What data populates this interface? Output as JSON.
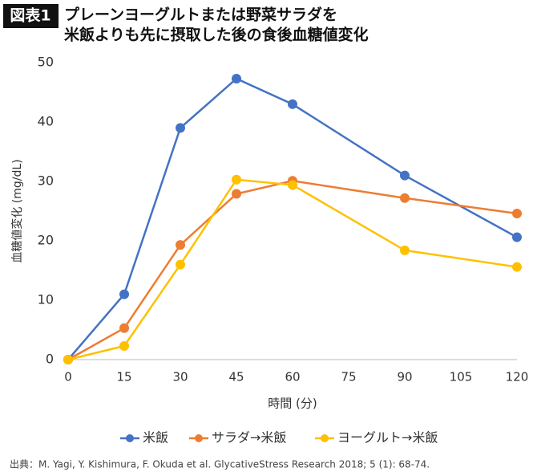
{
  "chart_data": {
    "type": "line",
    "badge": "図表1",
    "title_lines": [
      "プレーンヨーグルトまたは野菜サラダを",
      "米飯よりも先に摂取した後の食後血糖値変化"
    ],
    "x_label": "時間 (分)",
    "y_label": "血糖値変化 (mg/dL)",
    "x": [
      0,
      15,
      30,
      45,
      60,
      90,
      120
    ],
    "series": [
      {
        "name": "米飯",
        "color": "#4472c4",
        "values": [
          0,
          11,
          39,
          47.3,
          43,
          31,
          20.6
        ]
      },
      {
        "name": "サラダ→米飯",
        "color": "#ed7d31",
        "values": [
          0,
          5.3,
          19.3,
          27.9,
          30.1,
          27.2,
          24.6
        ]
      },
      {
        "name": "ヨーグルト→米飯",
        "color": "#ffc000",
        "values": [
          0,
          2.3,
          16,
          30.3,
          29.4,
          18.4,
          15.6
        ]
      }
    ],
    "xlim": [
      0,
      120
    ],
    "xticks": [
      0,
      15,
      30,
      45,
      60,
      75,
      90,
      105,
      120
    ],
    "ylim": [
      0,
      50
    ],
    "yticks": [
      0,
      10,
      20,
      30,
      40,
      50
    ],
    "legend": "bottom",
    "source": "出典：M. Yagi, Y. Kishimura, F. Okuda et al. GlycativeStress Research 2018; 5 (1): 68-74."
  }
}
